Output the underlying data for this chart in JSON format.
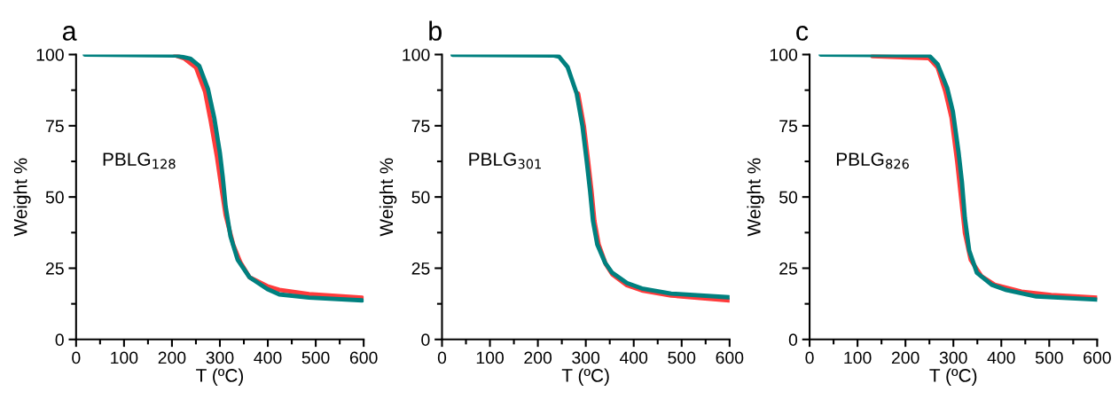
{
  "chart_data": [
    {
      "type": "line",
      "title": "a",
      "xlabel": "T (ºC)",
      "ylabel": "Weight %",
      "annotations": [
        "PBLG$_{128}$"
      ],
      "xlim": [
        0,
        600
      ],
      "ylim": [
        0,
        100
      ],
      "xticks": [
        0,
        {
          "value": 50,
          "label": null
        },
        100,
        {
          "value": 150,
          "label": null
        },
        200,
        {
          "value": 250,
          "label": null
        },
        300,
        {
          "value": 350,
          "label": null
        },
        400,
        {
          "value": 450,
          "label": null
        },
        500,
        {
          "value": 550,
          "label": null
        },
        600
      ],
      "yticks": [
        0,
        {
          "value": 12.5,
          "label": null
        },
        25,
        {
          "value": 37.5,
          "label": null
        },
        50,
        {
          "value": 62.5,
          "label": null
        },
        75,
        {
          "value": 87.5,
          "label": null
        },
        100
      ],
      "grid": false,
      "legend": false,
      "series": [
        {
          "color": "#ff3b3b",
          "x": [
            207,
            226,
            250,
            269,
            281,
            294,
            303,
            312,
            328,
            343,
            362,
            399,
            424,
            486,
            597
          ],
          "values": [
            99.7,
            98.6,
            95.5,
            87,
            76.6,
            64,
            53.6,
            43.6,
            33.2,
            27,
            21.8,
            18.7,
            17.4,
            15.9,
            14.7
          ]
        },
        {
          "color": "#00807f",
          "x": [
            18,
            207,
            238,
            257,
            275,
            288,
            300,
            306,
            312,
            322,
            337,
            362,
            399,
            424,
            486,
            597
          ],
          "values": [
            100,
            99.7,
            98.6,
            96,
            88,
            78,
            65.5,
            57,
            46.7,
            36.3,
            28,
            21.8,
            17.7,
            15.8,
            14.7,
            13.7
          ]
        }
      ]
    },
    {
      "type": "line",
      "title": "b",
      "xlabel": "T (ºC)",
      "ylabel": "Weight %",
      "annotations": [
        "PBLG$_{301}$"
      ],
      "xlim": [
        0,
        600
      ],
      "ylim": [
        0,
        100
      ],
      "xticks": [
        0,
        {
          "value": 50,
          "label": null
        },
        100,
        {
          "value": 150,
          "label": null
        },
        200,
        {
          "value": 250,
          "label": null
        },
        300,
        {
          "value": 350,
          "label": null
        },
        400,
        {
          "value": 450,
          "label": null
        },
        500,
        {
          "value": 550,
          "label": null
        },
        600
      ],
      "yticks": [
        0,
        {
          "value": 12.5,
          "label": null
        },
        25,
        {
          "value": 37.5,
          "label": null
        },
        50,
        {
          "value": 62.5,
          "label": null
        },
        75,
        {
          "value": 87.5,
          "label": null
        },
        100
      ],
      "grid": false,
      "legend": false,
      "series": [
        {
          "color": "#ff3b3b",
          "x": [
            284,
            296,
            305,
            312,
            318,
            327,
            342,
            355,
            386,
            417,
            478,
            599
          ],
          "values": [
            86.3,
            74.9,
            62.4,
            52,
            41.6,
            33.3,
            26.3,
            22.9,
            19,
            17.2,
            15.4,
            13.7
          ]
        },
        {
          "color": "#00807f",
          "x": [
            22,
            231,
            244,
            262,
            281,
            293,
            302,
            309,
            315,
            324,
            340,
            355,
            386,
            417,
            478,
            599
          ],
          "values": [
            99.9,
            99.7,
            99.3,
            95.6,
            86.3,
            74.9,
            62.4,
            52,
            41.6,
            33.3,
            27,
            23.4,
            19.8,
            17.9,
            16.1,
            14.8
          ]
        }
      ]
    },
    {
      "type": "line",
      "title": "c",
      "xlabel": "T (ºC)",
      "ylabel": "Weight %",
      "annotations": [
        "PBLG$_{826}$"
      ],
      "xlim": [
        0,
        600
      ],
      "ylim": [
        0,
        100
      ],
      "xticks": [
        0,
        {
          "value": 50,
          "label": null
        },
        100,
        {
          "value": 150,
          "label": null
        },
        200,
        {
          "value": 250,
          "label": null
        },
        300,
        {
          "value": 350,
          "label": null
        },
        400,
        {
          "value": 450,
          "label": null
        },
        500,
        {
          "value": 550,
          "label": null
        },
        600
      ],
      "yticks": [
        0,
        {
          "value": 12.5,
          "label": null
        },
        25,
        {
          "value": 37.5,
          "label": null
        },
        50,
        {
          "value": 62.5,
          "label": null
        },
        75,
        {
          "value": 87.5,
          "label": null
        },
        100
      ],
      "grid": false,
      "legend": false,
      "series": [
        {
          "color": "#ff3b3b",
          "x": [
            131,
            249,
            267,
            283,
            296,
            308,
            316,
            324,
            336,
            358,
            386,
            442,
            504,
            600
          ],
          "values": [
            99.4,
            98.7,
            95.5,
            87.2,
            77.9,
            62.3,
            49.8,
            37.4,
            28,
            22.3,
            19.2,
            16.8,
            15.6,
            14.7
          ]
        },
        {
          "color": "#00807f",
          "x": [
            23,
            249,
            267,
            287,
            299,
            311,
            318,
            324,
            333,
            349,
            380,
            411,
            473,
            600
          ],
          "values": [
            100,
            99.7,
            96.6,
            88.3,
            80,
            65.4,
            55,
            42.6,
            31.2,
            23.4,
            19.2,
            17.3,
            15.1,
            14
          ]
        }
      ]
    }
  ]
}
